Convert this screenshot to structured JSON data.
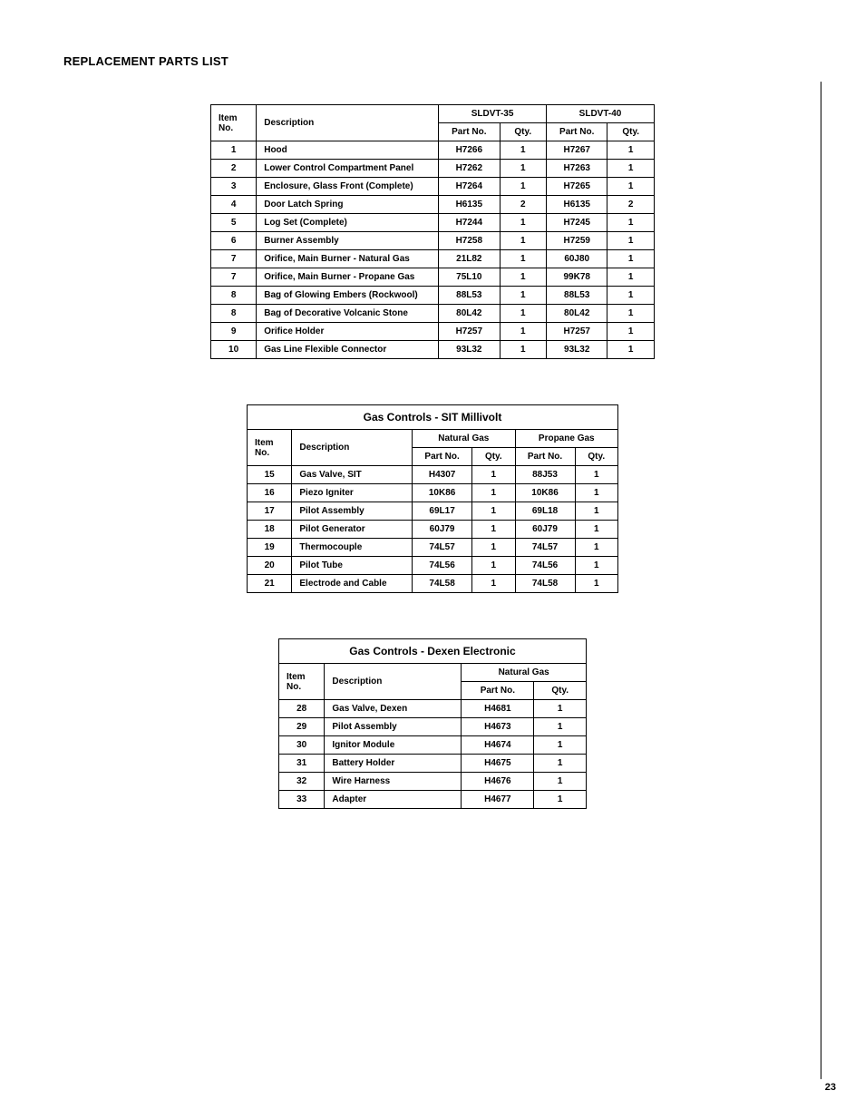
{
  "pageTitle": "REPLACEMENT PARTS LIST",
  "pageNumber": "23",
  "table1": {
    "headers": {
      "itemNo": "Item No.",
      "description": "Description",
      "model1": "SLDVT-35",
      "model2": "SLDVT-40",
      "partNo": "Part No.",
      "qty": "Qty."
    },
    "rows": [
      {
        "no": "1",
        "desc": "Hood",
        "p1": "H7266",
        "q1": "1",
        "p2": "H7267",
        "q2": "1"
      },
      {
        "no": "2",
        "desc": "Lower Control Compartment Panel",
        "p1": "H7262",
        "q1": "1",
        "p2": "H7263",
        "q2": "1"
      },
      {
        "no": "3",
        "desc": "Enclosure, Glass Front (Complete)",
        "p1": "H7264",
        "q1": "1",
        "p2": "H7265",
        "q2": "1"
      },
      {
        "no": "4",
        "desc": "Door Latch Spring",
        "p1": "H6135",
        "q1": "2",
        "p2": "H6135",
        "q2": "2"
      },
      {
        "no": "5",
        "desc": "Log Set (Complete)",
        "p1": "H7244",
        "q1": "1",
        "p2": "H7245",
        "q2": "1"
      },
      {
        "no": "6",
        "desc": "Burner Assembly",
        "p1": "H7258",
        "q1": "1",
        "p2": "H7259",
        "q2": "1"
      },
      {
        "no": "7",
        "desc": "Orifice, Main Burner - Natural Gas",
        "p1": "21L82",
        "q1": "1",
        "p2": "60J80",
        "q2": "1"
      },
      {
        "no": "7",
        "desc": "Orifice, Main Burner - Propane Gas",
        "p1": "75L10",
        "q1": "1",
        "p2": "99K78",
        "q2": "1"
      },
      {
        "no": "8",
        "desc": "Bag of Glowing Embers (Rockwool)",
        "p1": "88L53",
        "q1": "1",
        "p2": "88L53",
        "q2": "1"
      },
      {
        "no": "8",
        "desc": "Bag of Decorative Volcanic Stone",
        "p1": "80L42",
        "q1": "1",
        "p2": "80L42",
        "q2": "1"
      },
      {
        "no": "9",
        "desc": "Orifice Holder",
        "p1": "H7257",
        "q1": "1",
        "p2": "H7257",
        "q2": "1"
      },
      {
        "no": "10",
        "desc": "Gas Line Flexible Connector",
        "p1": "93L32",
        "q1": "1",
        "p2": "93L32",
        "q2": "1"
      }
    ]
  },
  "table2": {
    "caption": "Gas Controls - SIT Millivolt",
    "headers": {
      "itemNo": "Item No.",
      "description": "Description",
      "col1": "Natural Gas",
      "col2": "Propane Gas",
      "partNo": "Part No.",
      "qty": "Qty."
    },
    "rows": [
      {
        "no": "15",
        "desc": "Gas Valve, SIT",
        "p1": "H4307",
        "q1": "1",
        "p2": "88J53",
        "q2": "1"
      },
      {
        "no": "16",
        "desc": "Piezo Igniter",
        "p1": "10K86",
        "q1": "1",
        "p2": "10K86",
        "q2": "1"
      },
      {
        "no": "17",
        "desc": "Pilot Assembly",
        "p1": "69L17",
        "q1": "1",
        "p2": "69L18",
        "q2": "1"
      },
      {
        "no": "18",
        "desc": "Pilot Generator",
        "p1": "60J79",
        "q1": "1",
        "p2": "60J79",
        "q2": "1"
      },
      {
        "no": "19",
        "desc": "Thermocouple",
        "p1": "74L57",
        "q1": "1",
        "p2": "74L57",
        "q2": "1"
      },
      {
        "no": "20",
        "desc": "Pilot Tube",
        "p1": "74L56",
        "q1": "1",
        "p2": "74L56",
        "q2": "1"
      },
      {
        "no": "21",
        "desc": "Electrode and Cable",
        "p1": "74L58",
        "q1": "1",
        "p2": "74L58",
        "q2": "1"
      }
    ]
  },
  "table3": {
    "caption": "Gas Controls - Dexen Electronic",
    "headers": {
      "itemNo": "Item No.",
      "description": "Description",
      "col1": "Natural Gas",
      "partNo": "Part No.",
      "qty": "Qty."
    },
    "rows": [
      {
        "no": "28",
        "desc": "Gas Valve, Dexen",
        "p1": "H4681",
        "q1": "1"
      },
      {
        "no": "29",
        "desc": "Pilot Assembly",
        "p1": "H4673",
        "q1": "1"
      },
      {
        "no": "30",
        "desc": "Ignitor Module",
        "p1": "H4674",
        "q1": "1"
      },
      {
        "no": "31",
        "desc": "Battery Holder",
        "p1": "H4675",
        "q1": "1"
      },
      {
        "no": "32",
        "desc": "Wire Harness",
        "p1": "H4676",
        "q1": "1"
      },
      {
        "no": "33",
        "desc": "Adapter",
        "p1": "H4677",
        "q1": "1"
      }
    ]
  }
}
